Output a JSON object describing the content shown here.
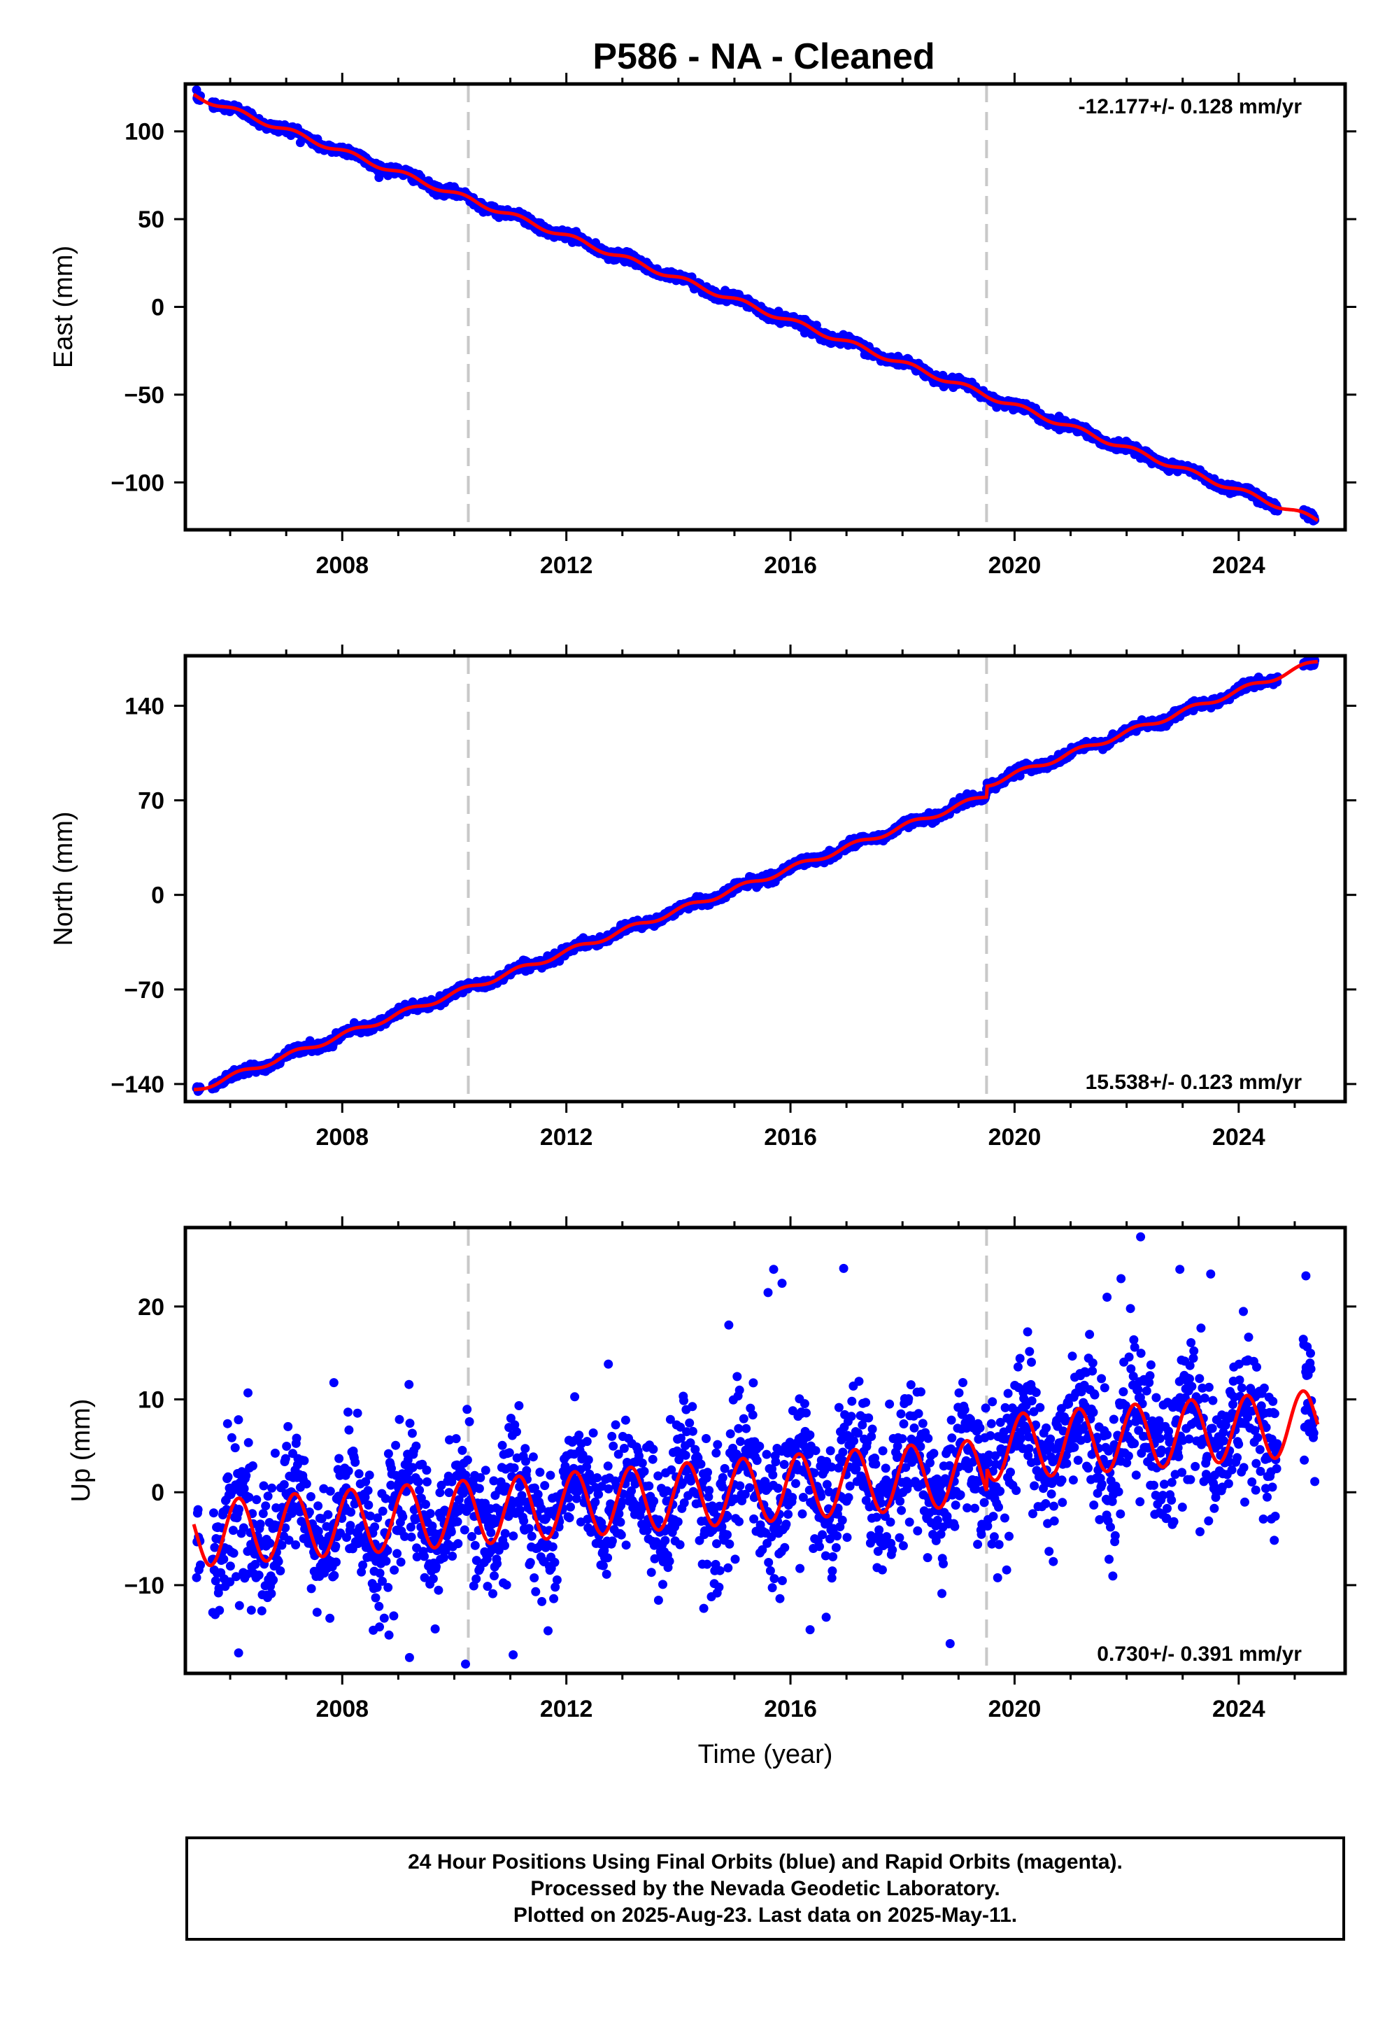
{
  "title": "P586  - NA - Cleaned",
  "colors": {
    "data": "#0000ff",
    "model": "#ff0000",
    "break_line": "#c8c8c8"
  },
  "chart_data": [
    {
      "type": "scatter",
      "component": "East",
      "ylabel": "East (mm)",
      "xlabel": "",
      "xlim": [
        2005.2,
        2025.9
      ],
      "ylim": [
        -127,
        127
      ],
      "x_ticks": [
        2008,
        2012,
        2016,
        2020,
        2024
      ],
      "y_ticks": [
        -100,
        -50,
        0,
        50,
        100
      ],
      "rate_text": "-12.177+/- 0.128 mm/yr",
      "rate_placement": "top-right",
      "rate_mm_per_yr": -12.177,
      "start": {
        "x": 2005.4,
        "y": 120
      },
      "end": {
        "x": 2025.36,
        "y": -121
      },
      "offsets": [],
      "seasonal_amplitude": 1.5,
      "noise": 1.3,
      "outliers": [],
      "grid": false
    },
    {
      "type": "scatter",
      "component": "North",
      "ylabel": "North (mm)",
      "xlabel": "",
      "xlim": [
        2005.2,
        2025.9
      ],
      "ylim": [
        -153,
        177
      ],
      "x_ticks": [
        2008,
        2012,
        2016,
        2020,
        2024
      ],
      "y_ticks": [
        -140,
        -70,
        0,
        70,
        140
      ],
      "rate_text": "15.538+/- 0.123 mm/yr",
      "rate_placement": "bottom-right",
      "rate_mm_per_yr": 15.538,
      "start": {
        "x": 2005.4,
        "y": -144
      },
      "end": {
        "x": 2025.36,
        "y": 172
      },
      "offsets": [
        {
          "x": 2019.5,
          "dy": 8
        }
      ],
      "seasonal_amplitude": 2,
      "noise": 1.6,
      "outliers": [],
      "grid": false
    },
    {
      "type": "scatter",
      "component": "Up",
      "ylabel": "Up (mm)",
      "xlabel": "Time (year)",
      "xlim": [
        2005.2,
        2025.9
      ],
      "ylim": [
        -19.5,
        28.5
      ],
      "x_ticks": [
        2008,
        2012,
        2016,
        2020,
        2024
      ],
      "y_ticks": [
        -10,
        0,
        10,
        20
      ],
      "rate_text": "0.730+/- 0.391 mm/yr",
      "rate_placement": "bottom-right",
      "rate_mm_per_yr": 0.73,
      "start": {
        "x": 2005.4,
        "y": -4.5
      },
      "end": {
        "x": 2025.36,
        "y": 7.5
      },
      "offsets": [
        {
          "x": 2019.5,
          "dy": 2.5
        }
      ],
      "seasonal_amplitude": 3.5,
      "noise": 3.6,
      "outliers": [
        {
          "x": 2015.7,
          "y": 24
        },
        {
          "x": 2015.85,
          "y": 22.5
        },
        {
          "x": 2015.6,
          "y": 21.5
        },
        {
          "x": 2016.95,
          "y": 24.1
        },
        {
          "x": 2014.9,
          "y": 18
        },
        {
          "x": 2021.9,
          "y": 23
        },
        {
          "x": 2022.25,
          "y": 27.5
        },
        {
          "x": 2022.95,
          "y": 24
        },
        {
          "x": 2023.5,
          "y": 23.5
        },
        {
          "x": 2025.2,
          "y": 23.3
        },
        {
          "x": 2021.65,
          "y": 21
        },
        {
          "x": 2018.85,
          "y": -16.3
        },
        {
          "x": 2010.2,
          "y": -18.5
        },
        {
          "x": 2009.2,
          "y": -17.8
        },
        {
          "x": 2006.15,
          "y": -17.3
        },
        {
          "x": 2011.05,
          "y": -17.5
        },
        {
          "x": 2016.35,
          "y": -14.8
        },
        {
          "x": 2020.3,
          "y": 14
        },
        {
          "x": 2012.75,
          "y": 13.8
        },
        {
          "x": 2007.85,
          "y": 11.8
        }
      ],
      "grid": false
    }
  ],
  "break_lines_x": [
    2010.25,
    2019.5
  ],
  "footer": {
    "line1": "24 Hour Positions Using Final Orbits (blue) and Rapid Orbits (magenta).",
    "line2": "Processed by the Nevada Geodetic Laboratory.",
    "line3": "Plotted on 2025-Aug-23. Last data on 2025-May-11."
  }
}
